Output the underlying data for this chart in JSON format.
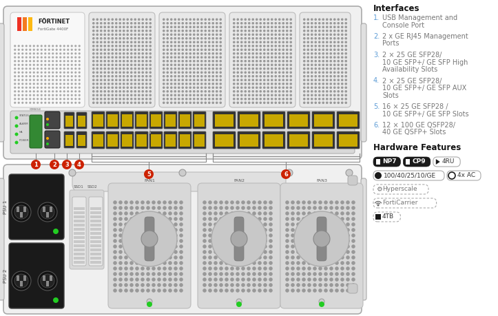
{
  "bg_color": "#ffffff",
  "chassis_fill": "#efefef",
  "chassis_stroke": "#aaaaaa",
  "fan_fill": "#e0e0e0",
  "fan_stroke": "#bbbbbb",
  "port_yellow": "#c8a800",
  "port_dark": "#3a3a3a",
  "port_green": "#22bb22",
  "label_red": "#cc2200",
  "text_gray": "#777777",
  "text_dark": "#333333",
  "link_blue": "#5b9bd5",
  "interfaces_heading": "Interfaces",
  "interfaces": [
    {
      "num": "1.",
      "lines": [
        "USB Management and",
        "Console Port"
      ]
    },
    {
      "num": "2.",
      "lines": [
        "2 x GE RJ45 Management",
        "Ports"
      ]
    },
    {
      "num": "3.",
      "lines": [
        "2 × 25 GE SFP28/",
        "10 GE SFP+/ GE SFP High",
        "Availability Slots"
      ]
    },
    {
      "num": "4.",
      "lines": [
        "2 × 25 GE SFP28/",
        "10 GE SFP+/ GE SFP AUX",
        "Slots"
      ]
    },
    {
      "num": "5.",
      "lines": [
        "16 × 25 GE SFP28 /",
        "10 GE SFP+/ GE SFP Slots"
      ]
    },
    {
      "num": "6.",
      "lines": [
        "12 × 100 GE QSFP28/",
        "40 GE QSFP+ Slots"
      ]
    }
  ],
  "hw_heading": "Hardware Features",
  "fortinet_bars": [
    "#ee3124",
    "#f47b20",
    "#fdb913"
  ]
}
